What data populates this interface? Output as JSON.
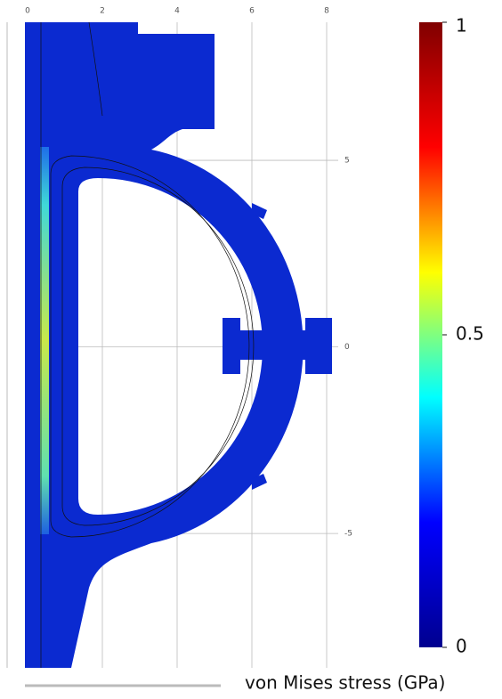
{
  "chart_data": {
    "type": "contour",
    "colorbar_label": "von Mises stress (GPa)",
    "xlim": [
      0,
      8
    ],
    "xticks": [
      0,
      2,
      4,
      6,
      8
    ],
    "ylim": [
      -8.6,
      8.7
    ],
    "yticks": [
      5,
      0,
      -5
    ],
    "clim": [
      0,
      1
    ],
    "cticks": [
      0,
      0.5,
      1
    ],
    "grid": true,
    "colormap": [
      "#00008f",
      "#0000ff",
      "#00ffff",
      "#ffff00",
      "#ff0000",
      "#800000"
    ]
  }
}
